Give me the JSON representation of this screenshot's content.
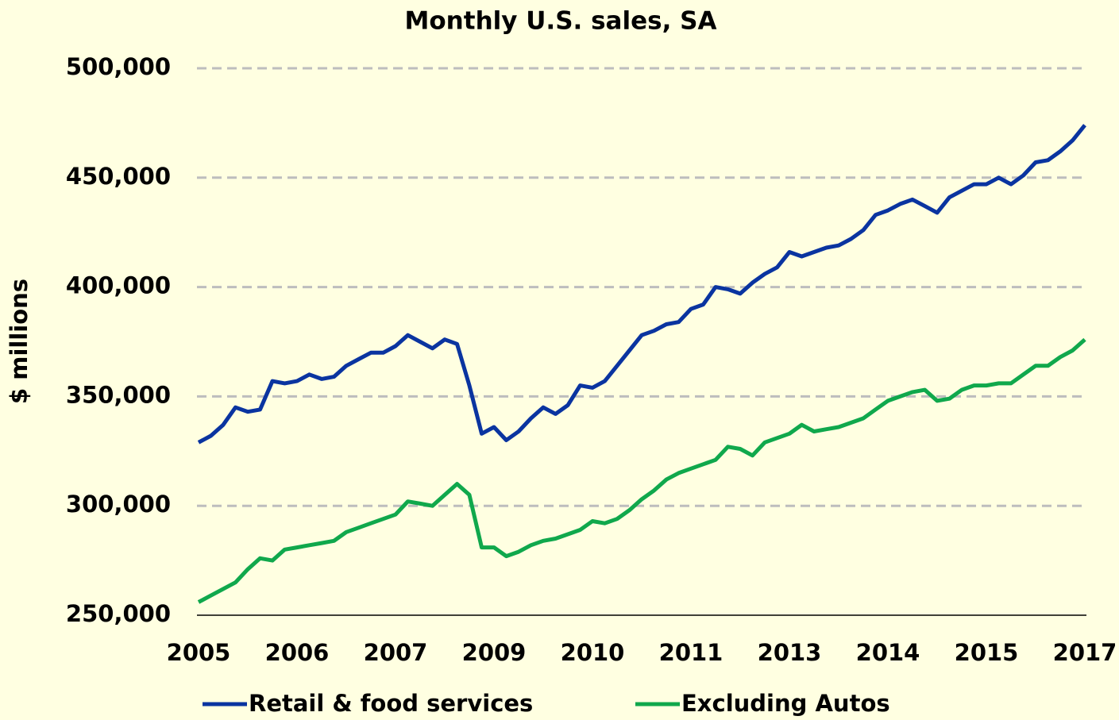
{
  "chart_data": {
    "type": "line",
    "title": "Monthly U.S. sales, SA",
    "y_label": "$ millions",
    "categories": [
      "2005",
      null,
      null,
      null,
      null,
      null,
      null,
      null,
      "2006",
      null,
      null,
      null,
      null,
      null,
      null,
      null,
      "2007",
      null,
      null,
      null,
      null,
      null,
      null,
      null,
      "2009",
      null,
      null,
      null,
      null,
      null,
      null,
      null,
      "2010",
      null,
      null,
      null,
      null,
      null,
      null,
      null,
      "2011",
      null,
      null,
      null,
      null,
      null,
      null,
      null,
      "2013",
      null,
      null,
      null,
      null,
      null,
      null,
      null,
      "2014",
      null,
      null,
      null,
      null,
      null,
      null,
      null,
      "2015",
      null,
      null,
      null,
      null,
      null,
      null,
      null,
      "2017"
    ],
    "series": [
      {
        "name": "Retail & food services",
        "color": "#0a34a0",
        "values": [
          329000,
          332000,
          337000,
          345000,
          343000,
          344000,
          357000,
          356000,
          357000,
          360000,
          358000,
          359000,
          364000,
          367000,
          370000,
          370000,
          373000,
          378000,
          375000,
          372000,
          376000,
          374000,
          355000,
          333000,
          336000,
          330000,
          334000,
          340000,
          345000,
          342000,
          346000,
          355000,
          354000,
          357000,
          364000,
          371000,
          378000,
          380000,
          383000,
          384000,
          390000,
          392000,
          400000,
          399000,
          397000,
          402000,
          406000,
          409000,
          416000,
          414000,
          416000,
          418000,
          419000,
          422000,
          426000,
          433000,
          435000,
          438000,
          440000,
          437000,
          434000,
          441000,
          444000,
          447000,
          447000,
          450000,
          447000,
          451000,
          457000,
          458000,
          462000,
          467000,
          474000
        ]
      },
      {
        "name": "Excluding Autos",
        "color": "#10a84c",
        "values": [
          256000,
          259000,
          262000,
          265000,
          271000,
          276000,
          275000,
          280000,
          281000,
          282000,
          283000,
          284000,
          288000,
          290000,
          292000,
          294000,
          296000,
          302000,
          301000,
          300000,
          305000,
          310000,
          305000,
          281000,
          281000,
          277000,
          279000,
          282000,
          284000,
          285000,
          287000,
          289000,
          293000,
          292000,
          294000,
          298000,
          303000,
          307000,
          312000,
          315000,
          317000,
          319000,
          321000,
          327000,
          326000,
          323000,
          329000,
          331000,
          333000,
          337000,
          334000,
          335000,
          336000,
          338000,
          340000,
          344000,
          348000,
          350000,
          352000,
          353000,
          348000,
          349000,
          353000,
          355000,
          355000,
          356000,
          356000,
          360000,
          364000,
          364000,
          368000,
          371000,
          376000
        ]
      }
    ],
    "ylim": [
      250000,
      500000
    ],
    "yticks": [
      {
        "value": 250000,
        "label": "250,000"
      },
      {
        "value": 300000,
        "label": "300,000"
      },
      {
        "value": 350000,
        "label": "350,000"
      },
      {
        "value": 400000,
        "label": "400,000"
      },
      {
        "value": 450000,
        "label": "450,000"
      },
      {
        "value": 500000,
        "label": "500,000"
      }
    ],
    "grid": true,
    "legend": "bottom"
  }
}
